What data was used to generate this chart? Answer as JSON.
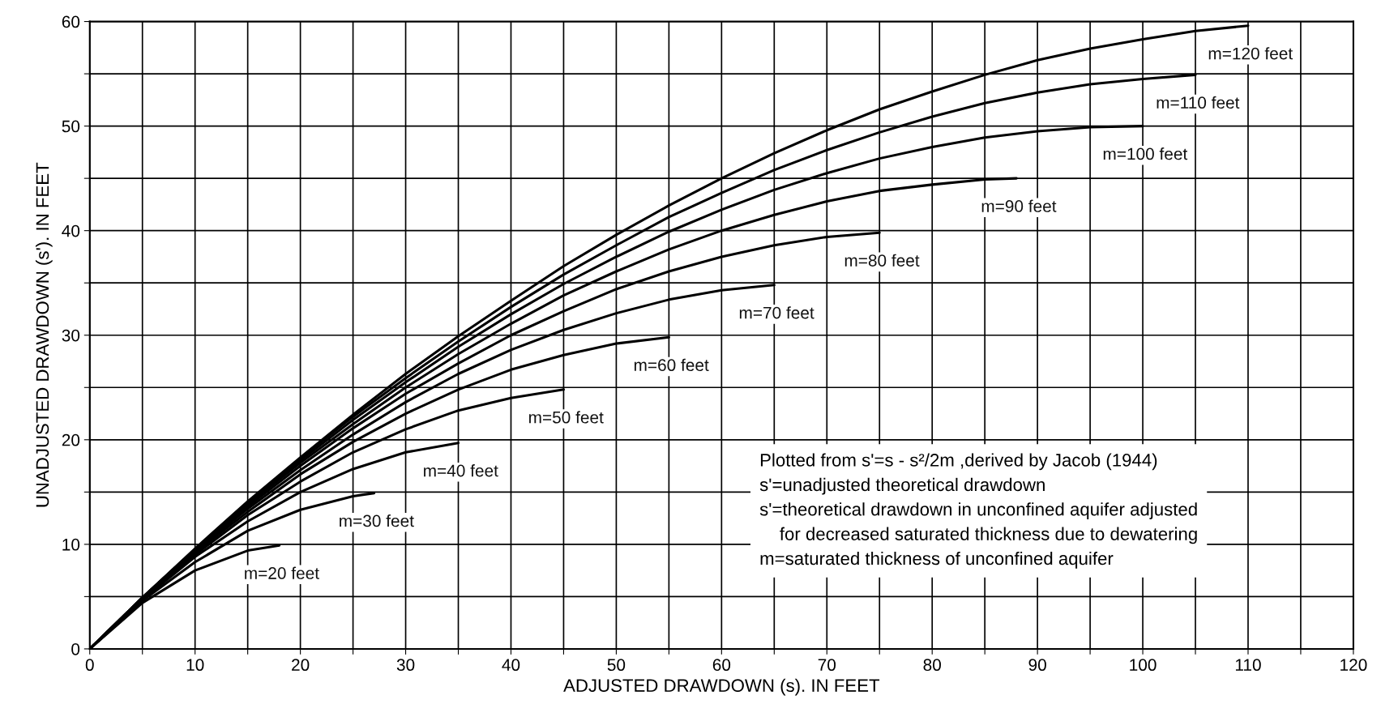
{
  "chart_data": {
    "type": "line",
    "xlabel": "ADJUSTED DRAWDOWN (s). IN FEET",
    "ylabel": "UNADJUSTED DRAWDOWN (s'). IN FEET",
    "xlim": [
      0,
      120
    ],
    "ylim": [
      0,
      60
    ],
    "xticks": [
      0,
      {
        "value": 5,
        "label": null
      },
      10,
      {
        "value": 15,
        "label": null
      },
      20,
      {
        "value": 25,
        "label": null
      },
      30,
      {
        "value": 35,
        "label": null
      },
      40,
      {
        "value": 45,
        "label": null
      },
      50,
      {
        "value": 55,
        "label": null
      },
      60,
      {
        "value": 65,
        "label": null
      },
      70,
      {
        "value": 75,
        "label": null
      },
      80,
      {
        "value": 85,
        "label": null
      },
      90,
      {
        "value": 95,
        "label": null
      },
      100,
      {
        "value": 105,
        "label": null
      },
      110,
      {
        "value": 115,
        "label": null
      },
      120
    ],
    "yticks": [
      0,
      {
        "value": 5,
        "label": null
      },
      10,
      {
        "value": 15,
        "label": null
      },
      20,
      {
        "value": 25,
        "label": null
      },
      30,
      {
        "value": 35,
        "label": null
      },
      40,
      {
        "value": 45,
        "label": null
      },
      50,
      {
        "value": 55,
        "label": null
      },
      60
    ],
    "grid": true,
    "marker": "none",
    "line_style": "solid",
    "series": [
      {
        "name": "m=20 feet",
        "color": "#000000",
        "x": [
          0,
          5,
          10,
          15,
          18
        ],
        "values": [
          0,
          4.4,
          7.5,
          9.4,
          9.9
        ]
      },
      {
        "name": "m=30 feet",
        "color": "#000000",
        "x": [
          0,
          5,
          10,
          15,
          20,
          25,
          27
        ],
        "values": [
          0,
          4.6,
          8.3,
          11.3,
          13.3,
          14.6,
          14.9
        ]
      },
      {
        "name": "m=40 feet",
        "color": "#000000",
        "x": [
          0,
          5,
          10,
          15,
          20,
          25,
          30,
          35
        ],
        "values": [
          0,
          4.7,
          8.8,
          12.2,
          15,
          17.2,
          18.8,
          19.7
        ]
      },
      {
        "name": "m=50 feet",
        "color": "#000000",
        "x": [
          0,
          5,
          10,
          15,
          20,
          25,
          30,
          35,
          40,
          45
        ],
        "values": [
          0,
          4.8,
          9,
          12.8,
          16,
          18.8,
          21,
          22.8,
          24,
          24.8
        ]
      },
      {
        "name": "m=60 feet",
        "color": "#000000",
        "x": [
          0,
          5,
          10,
          15,
          20,
          25,
          30,
          35,
          40,
          45,
          50,
          55
        ],
        "values": [
          0,
          4.8,
          9.2,
          13.1,
          16.7,
          19.8,
          22.5,
          24.8,
          26.7,
          28.1,
          29.2,
          29.8
        ]
      },
      {
        "name": "m=70 feet",
        "color": "#000000",
        "x": [
          0,
          5,
          10,
          15,
          20,
          25,
          30,
          35,
          40,
          45,
          50,
          55,
          60,
          65
        ],
        "values": [
          0,
          4.8,
          9.3,
          13.4,
          17.1,
          20.5,
          23.6,
          26.3,
          28.6,
          30.5,
          32.1,
          33.4,
          34.3,
          34.8
        ]
      },
      {
        "name": "m=80 feet",
        "color": "#000000",
        "x": [
          0,
          5,
          10,
          15,
          20,
          25,
          30,
          35,
          40,
          45,
          50,
          55,
          60,
          65,
          70,
          75
        ],
        "values": [
          0,
          4.8,
          9.4,
          13.6,
          17.5,
          21.1,
          24.4,
          27.3,
          30,
          32.3,
          34.4,
          36.1,
          37.5,
          38.6,
          39.4,
          39.8
        ]
      },
      {
        "name": "m=90 feet",
        "color": "#000000",
        "x": [
          0,
          5,
          10,
          15,
          20,
          25,
          30,
          35,
          40,
          45,
          50,
          55,
          60,
          65,
          70,
          75,
          80,
          85,
          88
        ],
        "values": [
          0,
          4.9,
          9.4,
          13.8,
          17.8,
          21.5,
          25,
          28.2,
          31.1,
          33.8,
          36.1,
          38.2,
          40,
          41.5,
          42.8,
          43.8,
          44.4,
          44.9,
          45
        ]
      },
      {
        "name": "m=100 feet",
        "color": "#000000",
        "x": [
          0,
          5,
          10,
          15,
          20,
          25,
          30,
          35,
          40,
          45,
          50,
          55,
          60,
          65,
          70,
          75,
          80,
          85,
          90,
          95,
          100
        ],
        "values": [
          0,
          4.9,
          9.5,
          13.9,
          18,
          21.9,
          25.5,
          28.9,
          32,
          34.9,
          37.5,
          39.9,
          42,
          43.9,
          45.5,
          46.9,
          48,
          48.9,
          49.5,
          49.9,
          50
        ]
      },
      {
        "name": "m=110 feet",
        "color": "#000000",
        "x": [
          0,
          5,
          10,
          15,
          20,
          25,
          30,
          35,
          40,
          45,
          50,
          55,
          60,
          65,
          70,
          75,
          80,
          85,
          90,
          95,
          100,
          105
        ],
        "values": [
          0,
          4.9,
          9.5,
          14,
          18.2,
          22.2,
          25.9,
          29.4,
          32.7,
          35.8,
          38.6,
          41.3,
          43.6,
          45.8,
          47.7,
          49.4,
          50.9,
          52.2,
          53.2,
          54,
          54.5,
          54.9
        ]
      },
      {
        "name": "m=120 feet",
        "color": "#000000",
        "x": [
          0,
          5,
          10,
          15,
          20,
          25,
          30,
          35,
          40,
          45,
          50,
          55,
          60,
          65,
          70,
          75,
          80,
          85,
          90,
          95,
          100,
          105,
          110
        ],
        "values": [
          0,
          4.9,
          9.6,
          14.1,
          18.3,
          22.4,
          26.3,
          29.9,
          33.3,
          36.6,
          39.6,
          42.4,
          45,
          47.4,
          49.6,
          51.6,
          53.3,
          54.9,
          56.3,
          57.4,
          58.3,
          59.1,
          59.6
        ]
      }
    ],
    "annotations": [
      "Plotted from s'=s - s²/2m ,derived by Jacob (1944)",
      "s'=unadjusted theoretical drawdown",
      "s'=theoretical drawdown in unconfined aquifer adjusted\n    for decreased saturated thickness due to dewatering",
      "m=saturated thickness of unconfined aquifer"
    ]
  }
}
